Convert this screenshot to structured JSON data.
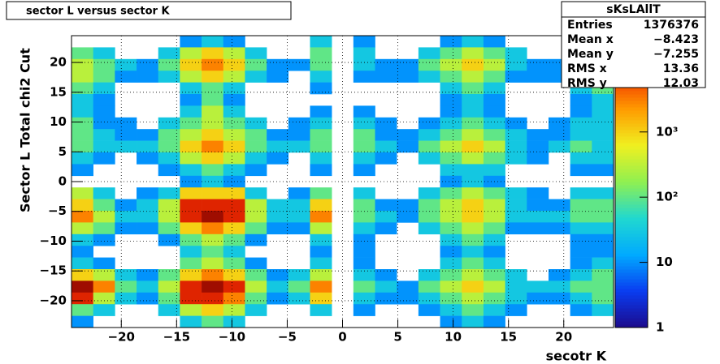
{
  "chart_data": {
    "type": "heatmap",
    "title": "sector L versus sector K",
    "x_label": "secotr K",
    "y_label": "Sector L  Total chi2 Cut",
    "xlim": [
      -24.5,
      24.5
    ],
    "ylim": [
      -24.5,
      24.5
    ],
    "xticks": [
      {
        "value": -20,
        "label": "−20"
      },
      {
        "value": -15,
        "label": "−15"
      },
      {
        "value": -10,
        "label": "−10"
      },
      {
        "value": -5,
        "label": "−5"
      },
      0,
      5,
      10,
      15,
      20
    ],
    "yticks": [
      {
        "value": -20,
        "label": "−20"
      },
      {
        "value": -15,
        "label": "−15"
      },
      {
        "value": -10,
        "label": "−10"
      },
      {
        "value": -5,
        "label": "−5"
      },
      0,
      5,
      10,
      15,
      20
    ],
    "grid": true,
    "zlim": [
      1,
      30000
    ],
    "zlog": true,
    "zticks": [
      1,
      10,
      {
        "value": 100,
        "label": "10²"
      },
      {
        "value": 1000,
        "label": "10³"
      }
    ],
    "palette": [
      "#1c0a8c",
      "#0a3cf0",
      "#00aaff",
      "#20d8d0",
      "#90f050",
      "#f0f020",
      "#ff9a00",
      "#f02a00",
      "#7a0000"
    ],
    "z": [
      [
        0,
        0,
        0,
        0,
        0,
        10,
        30,
        10,
        0,
        0,
        0,
        30,
        0,
        10,
        0,
        0,
        0,
        10,
        30,
        10,
        0,
        0,
        0,
        0,
        0
      ],
      [
        100,
        30,
        0,
        0,
        30,
        300,
        1000,
        300,
        30,
        0,
        0,
        100,
        0,
        30,
        0,
        0,
        30,
        100,
        300,
        100,
        30,
        0,
        0,
        0,
        0
      ],
      [
        300,
        100,
        30,
        10,
        100,
        1000,
        3000,
        1000,
        100,
        10,
        10,
        100,
        0,
        30,
        10,
        10,
        100,
        300,
        1000,
        300,
        30,
        10,
        10,
        30,
        30
      ],
      [
        300,
        100,
        10,
        10,
        30,
        300,
        1000,
        300,
        30,
        10,
        0,
        30,
        0,
        10,
        10,
        10,
        30,
        100,
        300,
        100,
        10,
        10,
        10,
        30,
        100
      ],
      [
        100,
        30,
        0,
        0,
        0,
        30,
        100,
        30,
        0,
        0,
        0,
        10,
        0,
        0,
        0,
        0,
        0,
        30,
        100,
        30,
        0,
        0,
        0,
        30,
        100
      ],
      [
        30,
        10,
        0,
        0,
        0,
        10,
        100,
        10,
        0,
        0,
        0,
        0,
        0,
        0,
        0,
        0,
        0,
        10,
        30,
        10,
        0,
        0,
        0,
        10,
        30
      ],
      [
        30,
        10,
        0,
        0,
        0,
        30,
        300,
        30,
        0,
        0,
        0,
        10,
        0,
        10,
        0,
        0,
        0,
        10,
        30,
        10,
        0,
        0,
        0,
        10,
        30
      ],
      [
        100,
        10,
        10,
        0,
        30,
        100,
        300,
        100,
        30,
        0,
        10,
        30,
        0,
        30,
        10,
        0,
        10,
        30,
        100,
        30,
        10,
        0,
        10,
        30,
        30
      ],
      [
        100,
        30,
        10,
        10,
        100,
        300,
        1000,
        300,
        100,
        10,
        10,
        100,
        0,
        100,
        10,
        10,
        30,
        100,
        300,
        100,
        30,
        10,
        10,
        30,
        30
      ],
      [
        100,
        30,
        30,
        30,
        100,
        1000,
        3000,
        1000,
        100,
        30,
        30,
        100,
        0,
        100,
        30,
        10,
        100,
        300,
        1000,
        300,
        30,
        10,
        30,
        100,
        30
      ],
      [
        30,
        10,
        0,
        10,
        30,
        300,
        1000,
        300,
        30,
        10,
        0,
        30,
        0,
        30,
        10,
        0,
        30,
        100,
        300,
        100,
        30,
        10,
        0,
        30,
        30
      ],
      [
        10,
        0,
        0,
        0,
        10,
        30,
        100,
        30,
        10,
        0,
        0,
        10,
        0,
        10,
        0,
        0,
        0,
        30,
        30,
        30,
        0,
        0,
        0,
        10,
        10
      ],
      [
        0,
        0,
        0,
        0,
        0,
        10,
        30,
        10,
        0,
        0,
        0,
        0,
        0,
        0,
        0,
        0,
        0,
        10,
        30,
        10,
        0,
        0,
        0,
        0,
        0
      ],
      [
        300,
        30,
        0,
        10,
        30,
        1000,
        1000,
        1000,
        30,
        0,
        10,
        100,
        0,
        30,
        0,
        0,
        30,
        100,
        300,
        100,
        30,
        10,
        0,
        30,
        30
      ],
      [
        1000,
        100,
        10,
        30,
        300,
        10000,
        10000,
        10000,
        300,
        30,
        30,
        1000,
        0,
        100,
        10,
        10,
        100,
        300,
        1000,
        300,
        30,
        10,
        10,
        100,
        100
      ],
      [
        3000,
        300,
        30,
        30,
        300,
        10000,
        20000,
        10000,
        300,
        30,
        30,
        3000,
        0,
        100,
        30,
        10,
        100,
        300,
        1000,
        300,
        30,
        30,
        30,
        100,
        100
      ],
      [
        300,
        100,
        10,
        10,
        100,
        1000,
        3000,
        1000,
        100,
        10,
        10,
        300,
        0,
        30,
        10,
        0,
        30,
        100,
        300,
        100,
        10,
        10,
        10,
        30,
        30
      ],
      [
        30,
        10,
        0,
        0,
        10,
        100,
        300,
        100,
        10,
        0,
        0,
        30,
        0,
        10,
        0,
        0,
        0,
        30,
        100,
        30,
        0,
        0,
        0,
        10,
        10
      ],
      [
        10,
        0,
        0,
        0,
        0,
        30,
        100,
        30,
        0,
        0,
        0,
        10,
        0,
        10,
        0,
        0,
        0,
        10,
        30,
        10,
        0,
        0,
        0,
        10,
        10
      ],
      [
        30,
        10,
        0,
        0,
        0,
        100,
        300,
        100,
        10,
        0,
        0,
        30,
        0,
        10,
        0,
        0,
        0,
        30,
        100,
        30,
        0,
        0,
        0,
        10,
        30
      ],
      [
        1000,
        300,
        30,
        10,
        100,
        1000,
        3000,
        1000,
        100,
        10,
        30,
        300,
        0,
        30,
        10,
        0,
        30,
        100,
        300,
        100,
        30,
        0,
        10,
        30,
        100
      ],
      [
        20000,
        3000,
        100,
        30,
        300,
        10000,
        20000,
        10000,
        300,
        30,
        100,
        3000,
        0,
        100,
        30,
        10,
        100,
        300,
        1000,
        300,
        30,
        30,
        30,
        100,
        100
      ],
      [
        10000,
        300,
        30,
        10,
        100,
        10000,
        10000,
        3000,
        100,
        10,
        30,
        1000,
        0,
        30,
        10,
        10,
        30,
        100,
        300,
        100,
        30,
        10,
        10,
        30,
        100
      ],
      [
        100,
        30,
        0,
        0,
        30,
        300,
        1000,
        300,
        30,
        0,
        0,
        30,
        0,
        10,
        0,
        0,
        10,
        30,
        100,
        30,
        10,
        0,
        0,
        10,
        30
      ],
      [
        10,
        0,
        0,
        0,
        0,
        30,
        100,
        30,
        0,
        0,
        0,
        0,
        0,
        0,
        0,
        0,
        0,
        10,
        30,
        10,
        0,
        0,
        0,
        0,
        0
      ]
    ],
    "stats": {
      "title": "sKsLAllT",
      "entries": [
        {
          "name": "Entries",
          "value": 1376376
        },
        {
          "name": "Mean x",
          "value": -8.423,
          "label": "−8.423"
        },
        {
          "name": "Mean y",
          "value": -7.255,
          "label": "−7.255"
        },
        {
          "name": "RMS x",
          "value": 13.36
        },
        {
          "name": "RMS y",
          "value": 12.03
        }
      ]
    }
  }
}
